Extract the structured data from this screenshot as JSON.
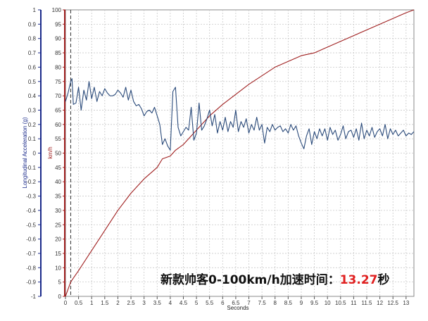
{
  "chart_data": {
    "type": "line",
    "xlabel": "Seconds",
    "y_left_label": "Longitudinal Acceleration (g)",
    "y_right_label": "km/h",
    "xlim": [
      0,
      13.3
    ],
    "x_ticks": [
      "0",
      "0.5",
      "1",
      "1.5",
      "2",
      "2.5",
      "3",
      "3.5",
      "4",
      "4.5",
      "5",
      "5.5",
      "6",
      "6.5",
      "7",
      "7.5",
      "8",
      "8.5",
      "9",
      "9.5",
      "10",
      "10.5",
      "11",
      "11.5",
      "12",
      "12.5",
      "13"
    ],
    "y_left_lim": [
      -1,
      1
    ],
    "y_left_ticks": [
      "1",
      "0.9",
      "0.8",
      "0.7",
      "0.6",
      "0.5",
      "0.4",
      "0.3",
      "0.2",
      "0.1",
      "0",
      "-0.1",
      "-0.2",
      "-0.3",
      "-0.4",
      "-0.5",
      "-0.6",
      "-0.7",
      "-0.8",
      "-0.9",
      "-1"
    ],
    "y_right_lim": [
      0,
      100
    ],
    "y_right_ticks": [
      "100",
      "95",
      "90",
      "85",
      "80",
      "75",
      "70",
      "65",
      "60",
      "55",
      "50",
      "45",
      "40",
      "35",
      "30",
      "25",
      "20",
      "15",
      "10",
      "5",
      "0"
    ],
    "grid": true,
    "start_marker_x": 0.2,
    "series": [
      {
        "axis": "right",
        "color": "#a02020",
        "x": [
          0,
          0.2,
          0.5,
          1,
          1.5,
          2,
          2.5,
          3,
          3.5,
          3.7,
          4,
          4.2,
          4.5,
          5,
          5.5,
          6,
          7,
          8,
          9,
          9.5,
          10,
          11,
          12,
          13,
          13.3
        ],
        "values": [
          0,
          5,
          9,
          16,
          23,
          30,
          36,
          41,
          45,
          48,
          49,
          51,
          53,
          58,
          63,
          67,
          74,
          80,
          84,
          85,
          87,
          91,
          95,
          99,
          100
        ]
      },
      {
        "axis": "left",
        "color": "#2a4a7a",
        "x": [
          0,
          0.1,
          0.2,
          0.25,
          0.3,
          0.4,
          0.5,
          0.6,
          0.7,
          0.8,
          0.9,
          1.0,
          1.1,
          1.2,
          1.3,
          1.4,
          1.5,
          1.6,
          1.7,
          1.8,
          1.9,
          2.0,
          2.1,
          2.2,
          2.3,
          2.4,
          2.5,
          2.6,
          2.7,
          2.8,
          2.9,
          3.0,
          3.1,
          3.2,
          3.3,
          3.4,
          3.5,
          3.6,
          3.7,
          3.8,
          3.9,
          4.0,
          4.1,
          4.2,
          4.3,
          4.4,
          4.5,
          4.6,
          4.7,
          4.8,
          4.9,
          5.0,
          5.1,
          5.2,
          5.3,
          5.4,
          5.5,
          5.6,
          5.7,
          5.8,
          5.9,
          6.0,
          6.1,
          6.2,
          6.3,
          6.4,
          6.5,
          6.6,
          6.7,
          6.8,
          6.9,
          7.0,
          7.1,
          7.2,
          7.3,
          7.4,
          7.5,
          7.6,
          7.7,
          7.8,
          7.9,
          8.0,
          8.1,
          8.2,
          8.3,
          8.4,
          8.5,
          8.6,
          8.7,
          8.8,
          8.9,
          9.0,
          9.1,
          9.2,
          9.3,
          9.4,
          9.5,
          9.6,
          9.7,
          9.8,
          9.9,
          10.0,
          10.1,
          10.2,
          10.3,
          10.4,
          10.5,
          10.6,
          10.7,
          10.8,
          10.9,
          11.0,
          11.1,
          11.2,
          11.3,
          11.4,
          11.5,
          11.6,
          11.7,
          11.8,
          11.9,
          12.0,
          12.1,
          12.2,
          12.3,
          12.4,
          12.5,
          12.6,
          12.7,
          12.8,
          12.9,
          13.0,
          13.1,
          13.2,
          13.3
        ],
        "values": [
          0.36,
          0.42,
          0.5,
          0.52,
          0.34,
          0.35,
          0.46,
          0.3,
          0.44,
          0.37,
          0.5,
          0.38,
          0.46,
          0.36,
          0.43,
          0.4,
          0.45,
          0.42,
          0.4,
          0.4,
          0.41,
          0.44,
          0.42,
          0.39,
          0.46,
          0.37,
          0.44,
          0.36,
          0.33,
          0.34,
          0.31,
          0.26,
          0.29,
          0.3,
          0.28,
          0.32,
          0.26,
          0.2,
          0.06,
          0.1,
          0.05,
          0.02,
          0.43,
          0.46,
          0.18,
          0.12,
          0.15,
          0.18,
          0.16,
          0.32,
          0.09,
          0.14,
          0.35,
          0.16,
          0.19,
          0.24,
          0.3,
          0.19,
          0.27,
          0.14,
          0.22,
          0.16,
          0.25,
          0.15,
          0.22,
          0.18,
          0.3,
          0.15,
          0.22,
          0.18,
          0.24,
          0.14,
          0.2,
          0.16,
          0.25,
          0.16,
          0.2,
          0.07,
          0.18,
          0.15,
          0.2,
          0.16,
          0.18,
          0.19,
          0.15,
          0.17,
          0.14,
          0.2,
          0.16,
          0.19,
          0.12,
          0.07,
          0.03,
          0.12,
          0.17,
          0.06,
          0.15,
          0.1,
          0.17,
          0.12,
          0.17,
          0.09,
          0.18,
          0.13,
          0.16,
          0.09,
          0.13,
          0.19,
          0.1,
          0.15,
          0.16,
          0.11,
          0.17,
          0.09,
          0.21,
          0.1,
          0.16,
          0.12,
          0.18,
          0.11,
          0.15,
          0.17,
          0.12,
          0.2,
          0.1,
          0.17,
          0.13,
          0.16,
          0.12,
          0.14,
          0.16,
          0.12,
          0.14,
          0.13,
          0.15
        ]
      }
    ]
  },
  "caption": {
    "prefix": "新款帅客0-100km/h加速时间：",
    "value": "13.27",
    "suffix": "秒"
  },
  "colors": {
    "left_axis": "#1a2a8a",
    "right_axis": "#a02020",
    "caption_highlight": "#e02020"
  }
}
